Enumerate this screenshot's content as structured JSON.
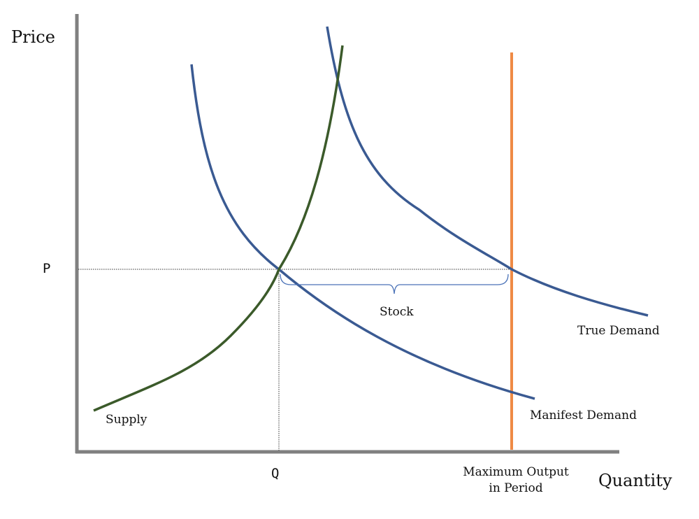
{
  "diagram": {
    "y_axis_title": "Price",
    "x_axis_title": "Quantity",
    "price_tick": "P",
    "quantity_tick": "Q",
    "stock_label": "Stock",
    "supply_label": "Supply",
    "true_demand_label": "True Demand",
    "manifest_demand_label": "Manifest Demand",
    "max_output_label_line1": "Maximum Output",
    "max_output_label_line2": "in Period",
    "colors": {
      "axes": "#808080",
      "demand_curves": "#3a5a92",
      "supply_curve": "#3b5a2a",
      "max_output_line": "#ef8a45",
      "guide_lines": "#333333",
      "stock_brace": "#4a72b8"
    }
  }
}
